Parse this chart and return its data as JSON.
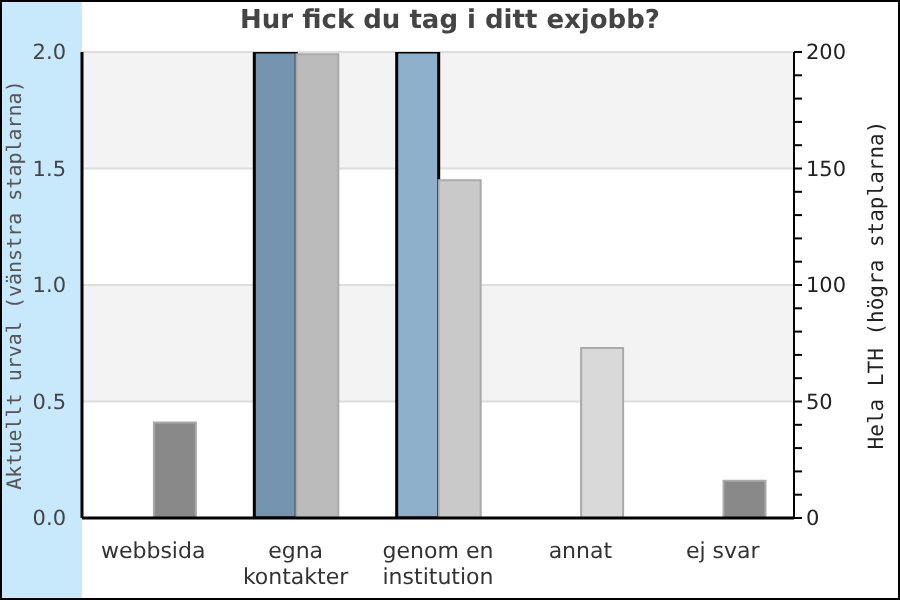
{
  "chart_data": {
    "type": "bar",
    "title": "Hur fick du tag i ditt exjobb?",
    "ylabel": "Aktuellt urval (vänstra staplarna)",
    "y2label": "Hela LTH (högra staplarna)",
    "categories": [
      "webbsida",
      "egna\nkontakter",
      "genom en\ninstitution",
      "annat",
      "ej svar"
    ],
    "series": [
      {
        "colors": [
          "#7393ae",
          "#7393ae",
          "#8fb0cb",
          "#8fb0cb",
          "#8fb0cb"
        ],
        "values": [
          0,
          2,
          2,
          0,
          0
        ]
      },
      {
        "axis": "y2",
        "colors": [
          "#898989",
          "#bbbbbb",
          "#c9c9c9",
          "#d9d9d9",
          "#898989"
        ],
        "values": [
          41,
          199,
          145,
          73,
          16
        ]
      }
    ],
    "ylim": [
      0,
      2
    ],
    "yticks": [
      {
        "value": 0,
        "label": "0.0"
      },
      {
        "value": 0.5,
        "label": "0.5"
      },
      {
        "value": 1,
        "label": "1.0"
      },
      {
        "value": 1.5,
        "label": "1.5"
      },
      {
        "value": 2,
        "label": "2.0"
      }
    ],
    "y2lim": [
      0,
      200
    ],
    "y2ticks": [
      0,
      {
        "value": 10,
        "label": null
      },
      {
        "value": 20,
        "label": null
      },
      {
        "value": 30,
        "label": null
      },
      {
        "value": 40,
        "label": null
      },
      50,
      {
        "value": 60,
        "label": null
      },
      {
        "value": 70,
        "label": null
      },
      {
        "value": 80,
        "label": null
      },
      {
        "value": 90,
        "label": null
      },
      100,
      {
        "value": 110,
        "label": null
      },
      {
        "value": 120,
        "label": null
      },
      {
        "value": 130,
        "label": null
      },
      {
        "value": 140,
        "label": null
      },
      150,
      {
        "value": 160,
        "label": null
      },
      {
        "value": 170,
        "label": null
      },
      {
        "value": 180,
        "label": null
      },
      {
        "value": 190,
        "label": null
      },
      200
    ],
    "grid": "y",
    "legend": false
  }
}
